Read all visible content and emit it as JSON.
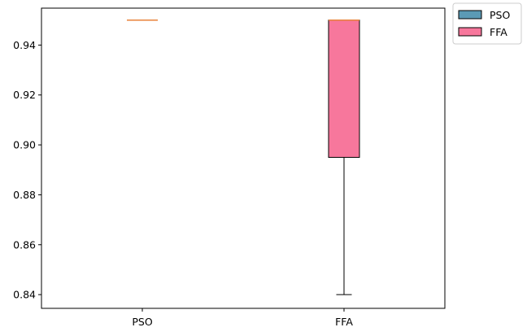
{
  "chart_data": {
    "type": "box",
    "categories": [
      "PSO",
      "FFA"
    ],
    "series": [
      {
        "name": "PSO",
        "color": "#5b9ab5",
        "stats": {
          "whislo": 0.95,
          "q1": 0.95,
          "med": 0.95,
          "q3": 0.95,
          "whishi": 0.95
        }
      },
      {
        "name": "FFA",
        "color": "#f7779c",
        "stats": {
          "whislo": 0.84,
          "q1": 0.895,
          "med": 0.95,
          "q3": 0.95,
          "whishi": 0.95
        }
      }
    ],
    "median_color": "#e8823a",
    "ylim": [
      0.8345,
      0.9548
    ],
    "yticks": [
      "0.84",
      "0.86",
      "0.88",
      "0.90",
      "0.92",
      "0.94"
    ],
    "legend": {
      "position": "outside-top-right",
      "entries": [
        "PSO",
        "FFA"
      ]
    },
    "grid": false,
    "title": "",
    "xlabel": "",
    "ylabel": ""
  }
}
